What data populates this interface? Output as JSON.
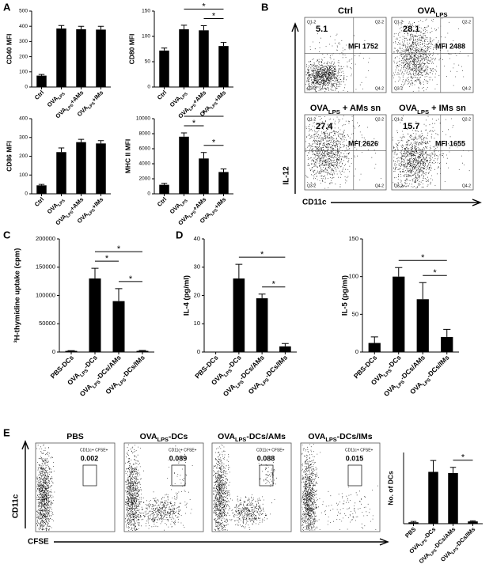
{
  "panel_letters": [
    "A",
    "B",
    "C",
    "D",
    "E"
  ],
  "chart_data": [
    {
      "type": "bar",
      "y_label": "CD40 MFI",
      "categories": [
        "Ctrl",
        "OVALPS",
        "OVALPS+AMs",
        "OVALPS+IMs"
      ],
      "values": [
        75,
        385,
        380,
        378
      ],
      "errors": [
        8,
        20,
        20,
        22
      ],
      "color": "#000000",
      "ylim": [
        0,
        500
      ],
      "yticks": [
        0,
        100,
        200,
        300,
        400,
        500
      ],
      "significance": []
    },
    {
      "type": "bar",
      "y_label": "CD80 MFI",
      "categories": [
        "Ctrl",
        "OVALPS",
        "OVALPS+AMs",
        "OVALPS+IMs"
      ],
      "values": [
        72,
        114,
        112,
        81
      ],
      "errors": [
        5,
        8,
        9,
        7
      ],
      "color": "#000000",
      "ylim": [
        0,
        150
      ],
      "yticks": [
        0,
        50,
        100,
        150
      ],
      "significance": [
        {
          "from": 2,
          "to": 3,
          "label": "*"
        },
        {
          "from": 1,
          "to": 3,
          "label": "*"
        }
      ]
    },
    {
      "type": "bar",
      "y_label": "CD86 MFI",
      "categories": [
        "Ctrl",
        "OVALPS",
        "OVALPS+AMs",
        "OVALPS+IMs"
      ],
      "values": [
        45,
        222,
        275,
        268
      ],
      "errors": [
        5,
        22,
        15,
        15
      ],
      "color": "#000000",
      "ylim": [
        0,
        400
      ],
      "yticks": [
        0,
        100,
        200,
        300,
        400
      ],
      "significance": []
    },
    {
      "type": "bar",
      "y_label": "MHC II MFI",
      "categories": [
        "Ctrl",
        "OVALPS",
        "OVALPS+AMs",
        "OVALPS+IMs"
      ],
      "values": [
        1200,
        7600,
        4700,
        2900
      ],
      "errors": [
        200,
        500,
        800,
        400
      ],
      "color": "#000000",
      "ylim": [
        0,
        10000
      ],
      "yticks": [
        0,
        2000,
        4000,
        6000,
        8000,
        10000
      ],
      "significance": [
        {
          "from": 2,
          "to": 3,
          "label": "*"
        },
        {
          "from": 1,
          "to": 2,
          "label": "*"
        },
        {
          "from": 1,
          "to": 3,
          "label": "*"
        }
      ]
    },
    {
      "type": "bar",
      "y_label": "³H-thymidine uptake (cpm)",
      "categories": [
        "PBS-DCs",
        "OVALPS-DCs",
        "OVALPS-DCs/AMs",
        "OVALPS-DCs/IMs"
      ],
      "values": [
        2000,
        130000,
        90000,
        2000
      ],
      "errors": [
        500,
        18000,
        22000,
        800
      ],
      "color": "#000000",
      "ylim": [
        0,
        200000
      ],
      "yticks": [
        0,
        50000,
        100000,
        150000,
        200000
      ],
      "significance": [
        {
          "from": 2,
          "to": 3,
          "label": "*"
        },
        {
          "from": 1,
          "to": 2,
          "label": "*"
        },
        {
          "from": 1,
          "to": 3,
          "label": "*"
        }
      ]
    },
    {
      "type": "bar",
      "y_label": "IL-4 (pg/ml)",
      "categories": [
        "PBS-DCs",
        "OVALPS-DCs",
        "OVALPS-DCs/AMs",
        "OVALPS-DCs/IMs"
      ],
      "values": [
        0,
        26,
        19,
        2
      ],
      "errors": [
        0,
        5,
        1.5,
        1
      ],
      "color": "#000000",
      "ylim": [
        0,
        40
      ],
      "yticks": [
        0,
        10,
        20,
        30,
        40
      ],
      "significance": [
        {
          "from": 2,
          "to": 3,
          "label": "*"
        },
        {
          "from": 1,
          "to": 3,
          "label": "*"
        }
      ]
    },
    {
      "type": "bar",
      "y_label": "IL-5 (pg/ml)",
      "categories": [
        "PBS-DCs",
        "OVALPS-DCs",
        "OVALPS-DCs/AMs",
        "OVALPS-DCs/IMs"
      ],
      "values": [
        12,
        100,
        70,
        20
      ],
      "errors": [
        8,
        12,
        22,
        10
      ],
      "color": "#000000",
      "ylim": [
        0,
        150
      ],
      "yticks": [
        0,
        50,
        100,
        150
      ],
      "significance": [
        {
          "from": 2,
          "to": 3,
          "label": "*"
        },
        {
          "from": 1,
          "to": 3,
          "label": "*"
        }
      ]
    },
    {
      "type": "bar",
      "y_label": "No. of DCs",
      "categories": [
        "PBS",
        "OVALPS-DCs",
        "OVALPS-DCs/AMs",
        "OVALPS-DCs/IMs"
      ],
      "values": [
        50,
        1820,
        1780,
        80
      ],
      "errors": [
        30,
        400,
        200,
        20
      ],
      "color": "#000000",
      "ylim": [
        0,
        2500
      ],
      "yticks": [],
      "significance": [
        {
          "from": 2,
          "to": 3,
          "label": "*"
        }
      ]
    }
  ],
  "flow_b": {
    "y_label": "IL-12",
    "x_label": "CD11c",
    "quadrants": [
      "Q1-2",
      "Q2-2",
      "Q3-2",
      "Q4-2"
    ],
    "plots": [
      {
        "title": "Ctrl",
        "percent": 5.1,
        "mfi": "MFI 1752"
      },
      {
        "title": "OVALPS",
        "percent": 28.1,
        "mfi": "MFI 2488"
      },
      {
        "title": "OVALPS + AMs sn",
        "percent": 27.4,
        "mfi": "MFI 2626"
      },
      {
        "title": "OVALPS + IMs sn",
        "percent": 15.7,
        "mfi": "MFI 1655"
      }
    ]
  },
  "flow_e": {
    "y_label": "CD11c",
    "x_label": "CFSE",
    "gate": "CD11c+ CFSE+",
    "plots": [
      {
        "title": "PBS",
        "percent": 0.002
      },
      {
        "title": "OVALPS-DCs",
        "percent": 0.089
      },
      {
        "title": "OVALPS-DCs/AMs",
        "percent": 0.088
      },
      {
        "title": "OVALPS-DCs/IMs",
        "percent": 0.015
      }
    ]
  }
}
